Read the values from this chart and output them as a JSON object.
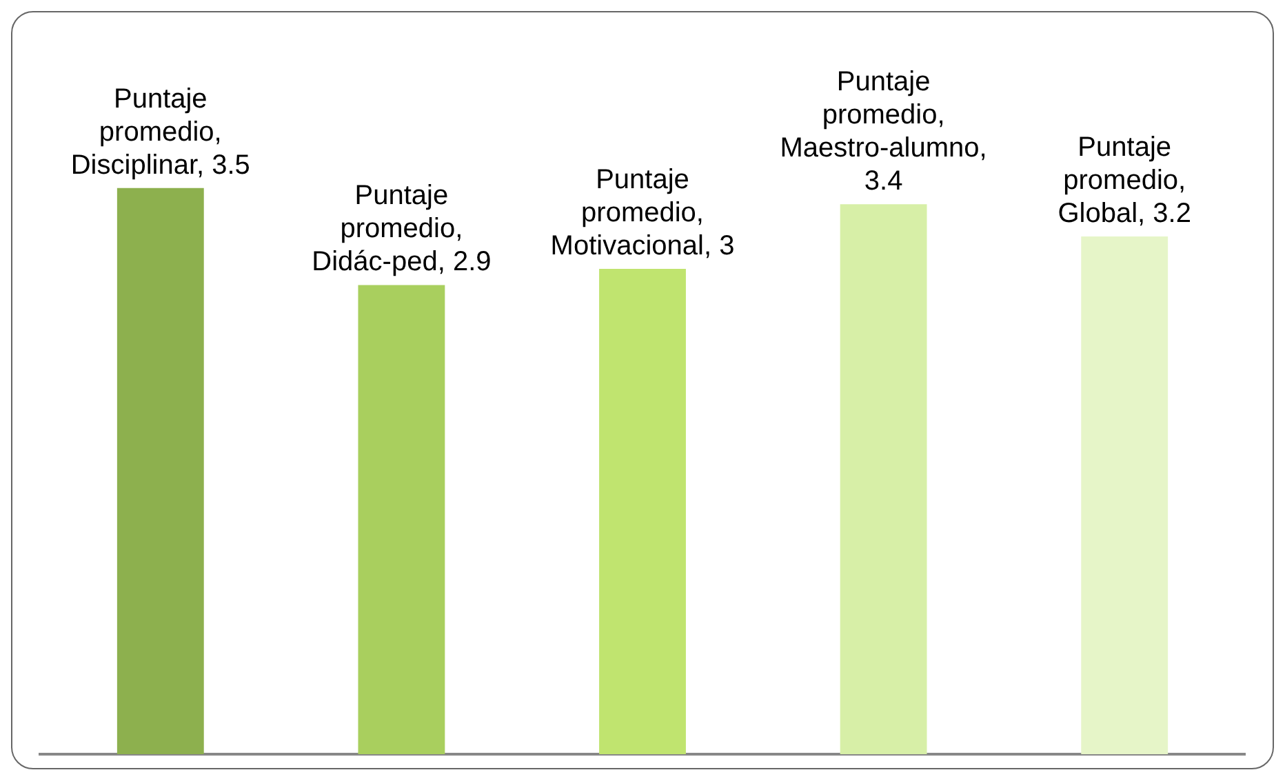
{
  "chart_data": {
    "type": "bar",
    "categories": [
      null,
      null,
      null,
      null,
      null
    ],
    "values": [
      3.5,
      2.9,
      3,
      3.4,
      3.2
    ],
    "colors": [
      "#8db04e",
      "#a9cf5e",
      "#c0e46f",
      "#d7efa7",
      "#e6f5c8"
    ],
    "value_labels": [
      "Puntaje promedio, Disciplinar, 3.5",
      "Puntaje promedio, Didác-ped, 2.9",
      "Puntaje promedio, Motivacional, 3",
      "Puntaje promedio, Maestro-alumno, 3.4",
      "Puntaje promedio, Global, 3.2"
    ],
    "tick_labels": false
  }
}
